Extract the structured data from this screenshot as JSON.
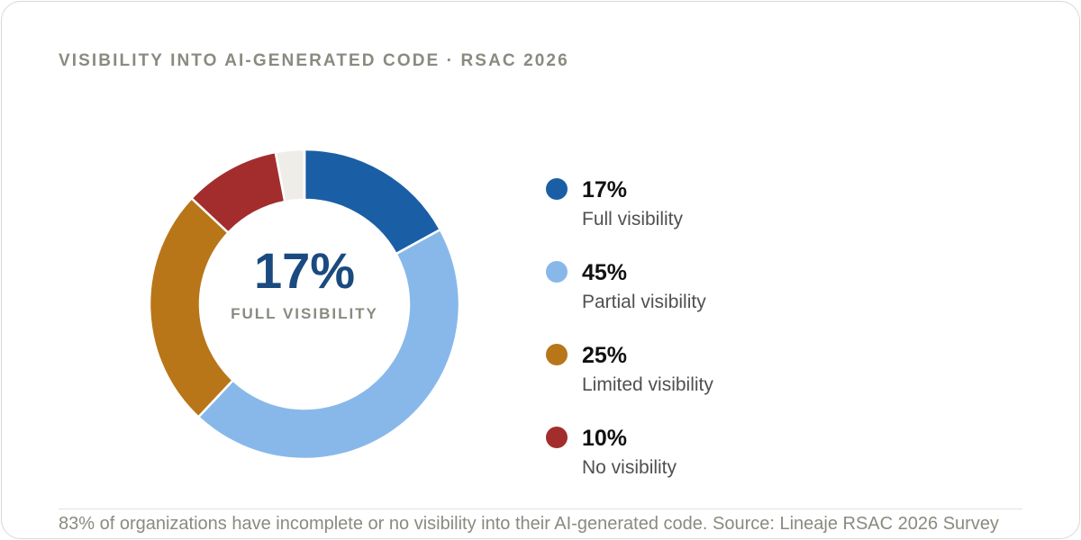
{
  "title": "VISIBILITY INTO AI-GENERATED CODE · RSAC 2026",
  "footnote": "83% of organizations have incomplete or no visibility into their AI-generated code. Source: Lineaje RSAC 2026 Survey",
  "chart_data": {
    "type": "pie",
    "variant": "donut",
    "title": "VISIBILITY INTO AI-GENERATED CODE · RSAC 2026",
    "center": {
      "value": "17%",
      "label": "FULL VISIBILITY"
    },
    "slices": [
      {
        "label": "Full visibility",
        "value": 17,
        "display": "17%",
        "color": "#1a5fa5"
      },
      {
        "label": "Partial visibility",
        "value": 45,
        "display": "45%",
        "color": "#88b8ea"
      },
      {
        "label": "Limited visibility",
        "value": 25,
        "display": "25%",
        "color": "#b87618"
      },
      {
        "label": "No visibility",
        "value": 10,
        "display": "10%",
        "color": "#a32d2d"
      },
      {
        "label": "",
        "value": 3,
        "display": "",
        "color": "#efede8"
      }
    ]
  }
}
